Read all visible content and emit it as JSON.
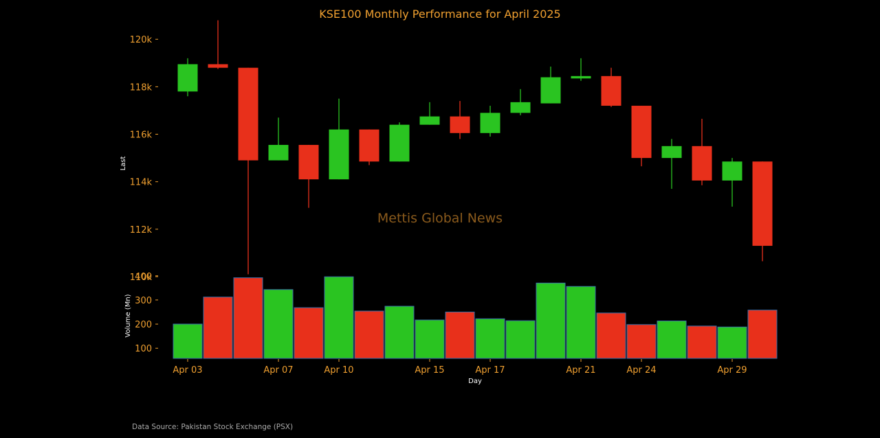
{
  "chart_data": {
    "type": "candlestick",
    "title": "KSE100 Monthly Performance for April 2025",
    "xlabel": "Day",
    "ylabel": "Last",
    "volume_label": "Volume (Mn)",
    "watermark": "Mettis Global News",
    "source": "Data Source: Pakistan Stock Exchange (PSX)",
    "price_ylim": [
      110000,
      120700
    ],
    "price_ticks": [
      110000,
      112000,
      114000,
      116000,
      118000,
      120000
    ],
    "price_tick_labels": [
      "110k",
      "112k",
      "114k",
      "116k",
      "118k",
      "120k"
    ],
    "volume_ylim": [
      58,
      405
    ],
    "volume_ticks": [
      100,
      200,
      300,
      400
    ],
    "volume_tick_labels": [
      "100",
      "200",
      "300",
      "400"
    ],
    "x_tick_labels": [
      "Apr 03",
      "Apr 07",
      "Apr 10",
      "Apr 15",
      "Apr 17",
      "Apr 21",
      "Apr 24",
      "Apr 29"
    ],
    "x_tick_indices": [
      0,
      3,
      5,
      8,
      10,
      13,
      15,
      18
    ],
    "colors": {
      "up": "#2ac421",
      "down": "#e8301b",
      "text": "#f0a030"
    },
    "candles": [
      {
        "open": 117800,
        "high": 119200,
        "low": 117600,
        "close": 118950,
        "volume": 200
      },
      {
        "open": 118950,
        "high": 120800,
        "low": 118750,
        "close": 118800,
        "volume": 312
      },
      {
        "open": 118800,
        "high": 118800,
        "low": 110100,
        "close": 114900,
        "volume": 392
      },
      {
        "open": 114900,
        "high": 116700,
        "low": 114900,
        "close": 115550,
        "volume": 343
      },
      {
        "open": 115550,
        "high": 115550,
        "low": 112900,
        "close": 114100,
        "volume": 268
      },
      {
        "open": 114100,
        "high": 117500,
        "low": 114100,
        "close": 116200,
        "volume": 396
      },
      {
        "open": 116200,
        "high": 116200,
        "low": 114700,
        "close": 114850,
        "volume": 254
      },
      {
        "open": 114850,
        "high": 116500,
        "low": 114850,
        "close": 116400,
        "volume": 274
      },
      {
        "open": 116400,
        "high": 117350,
        "low": 116400,
        "close": 116750,
        "volume": 217
      },
      {
        "open": 116750,
        "high": 117400,
        "low": 115800,
        "close": 116050,
        "volume": 250
      },
      {
        "open": 116050,
        "high": 117200,
        "low": 115900,
        "close": 116900,
        "volume": 222
      },
      {
        "open": 116900,
        "high": 117900,
        "low": 116800,
        "close": 117350,
        "volume": 214
      },
      {
        "open": 117300,
        "high": 118850,
        "low": 117300,
        "close": 118400,
        "volume": 370
      },
      {
        "open": 118350,
        "high": 119200,
        "low": 118250,
        "close": 118450,
        "volume": 356
      },
      {
        "open": 118450,
        "high": 118800,
        "low": 117150,
        "close": 117200,
        "volume": 246
      },
      {
        "open": 117200,
        "high": 117200,
        "low": 114650,
        "close": 115000,
        "volume": 198
      },
      {
        "open": 115000,
        "high": 115800,
        "low": 113700,
        "close": 115500,
        "volume": 213
      },
      {
        "open": 115500,
        "high": 116650,
        "low": 113850,
        "close": 114050,
        "volume": 192
      },
      {
        "open": 114050,
        "high": 115000,
        "low": 112950,
        "close": 114850,
        "volume": 188
      },
      {
        "open": 114850,
        "high": 114850,
        "low": 110650,
        "close": 111300,
        "volume": 258
      }
    ]
  }
}
